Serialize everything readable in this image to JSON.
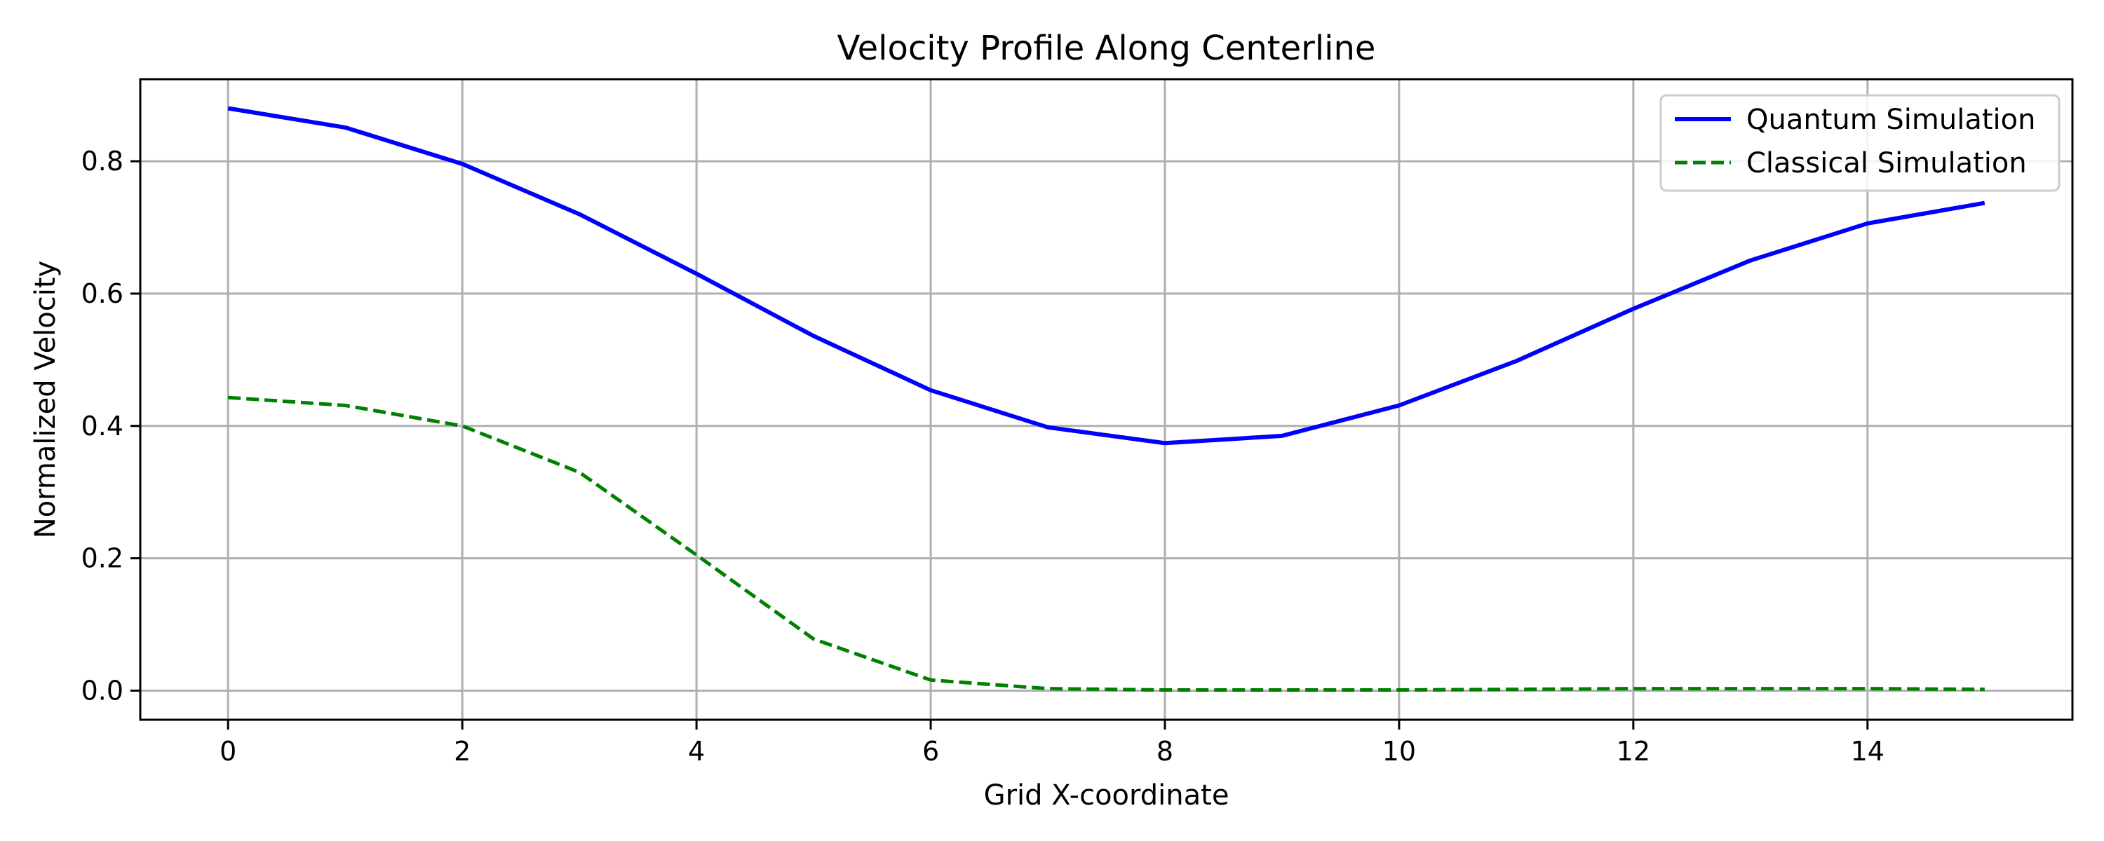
{
  "chart_data": {
    "type": "line",
    "title": "Velocity Profile Along Centerline",
    "xlabel": "Grid X-coordinate",
    "ylabel": "Normalized Velocity",
    "xlim": [
      -0.75,
      15.75
    ],
    "ylim": [
      -0.044,
      0.924
    ],
    "xticks": [
      0,
      2,
      4,
      6,
      8,
      10,
      12,
      14
    ],
    "yticks": [
      0.0,
      0.2,
      0.4,
      0.6,
      0.8
    ],
    "grid": true,
    "legend_position": "top-right",
    "x": [
      0,
      1,
      2,
      3,
      4,
      5,
      6,
      7,
      8,
      9,
      10,
      11,
      12,
      13,
      14,
      15
    ],
    "series": [
      {
        "name": "Quantum Simulation",
        "color": "#0000ff",
        "style": "solid",
        "values": [
          0.88,
          0.851,
          0.796,
          0.72,
          0.63,
          0.536,
          0.454,
          0.398,
          0.374,
          0.385,
          0.431,
          0.498,
          0.577,
          0.65,
          0.706,
          0.737
        ]
      },
      {
        "name": "Classical Simulation",
        "color": "#008000",
        "style": "dashed",
        "values": [
          0.443,
          0.431,
          0.4,
          0.33,
          0.205,
          0.078,
          0.016,
          0.003,
          0.001,
          0.001,
          0.001,
          0.002,
          0.003,
          0.003,
          0.003,
          0.002
        ]
      }
    ]
  }
}
